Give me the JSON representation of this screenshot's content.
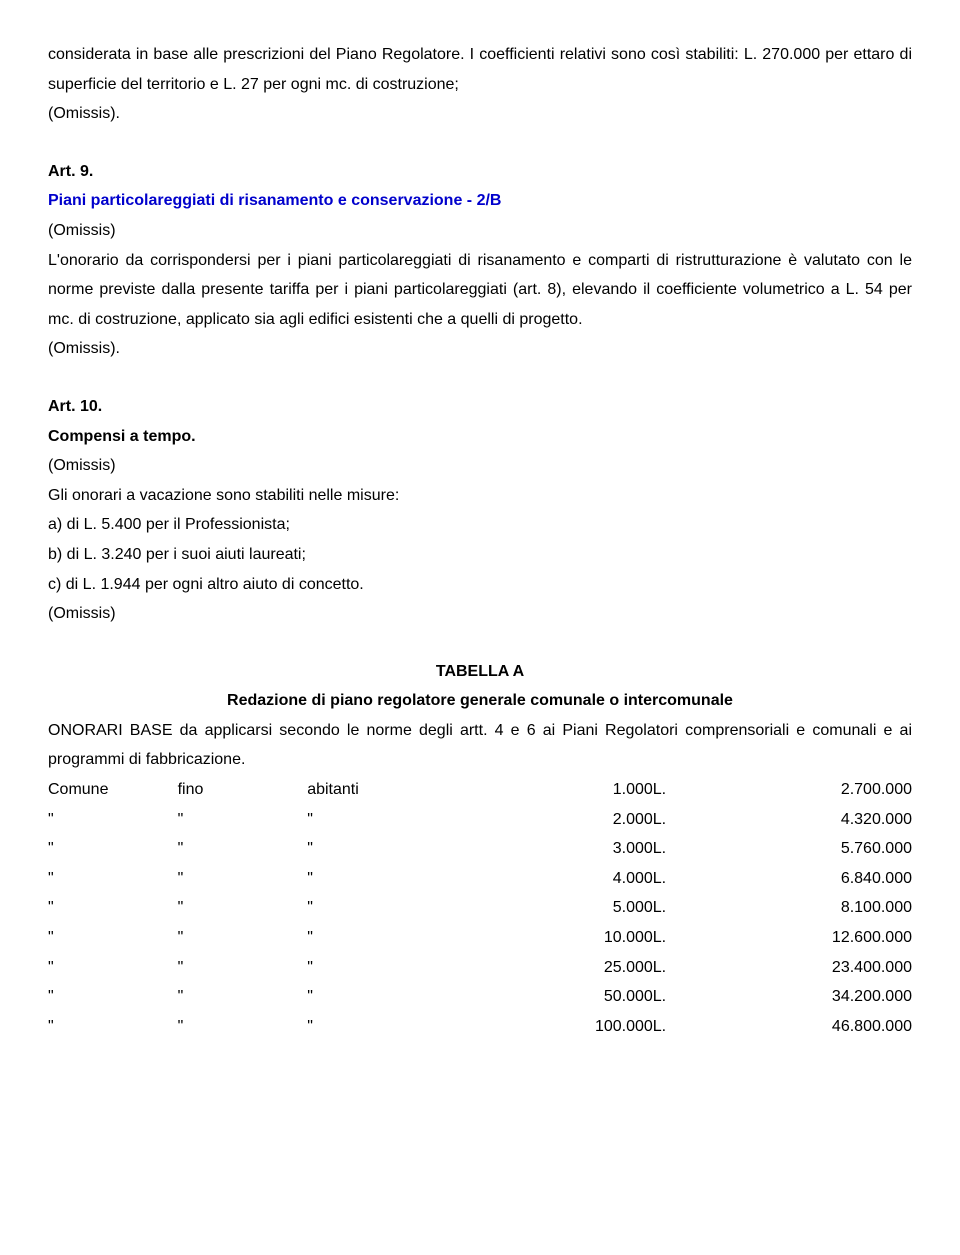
{
  "intro": {
    "p1": "considerata in base alle prescrizioni del Piano Regolatore. I coefficienti relativi sono così stabiliti: L. 270.000 per ettaro di superficie del territorio e L. 27 per ogni mc. di costruzione;",
    "omissis": "(Omissis)."
  },
  "art9": {
    "heading": "Art. 9.",
    "title": "Piani particolareggiati di risanamento e conservazione - 2/B",
    "omissis1": "(Omissis)",
    "body": "L'onorario da corrispondersi per i piani particolareggiati di risanamento e comparti di ristrutturazione è valutato con le norme previste dalla presente tariffa per i piani particolareggiati (art. 8), elevando il coefficiente volumetrico a L. 54 per mc. di costruzione, applicato sia agli edifici esistenti che a quelli di progetto.",
    "omissis2": "(Omissis)."
  },
  "art10": {
    "heading": "Art. 10.",
    "title": "Compensi a tempo.",
    "omissis1": "(Omissis)",
    "line1": "Gli onorari a vacazione sono stabiliti nelle misure:",
    "a": "a) di L. 5.400 per il Professionista;",
    "b": "b) di L. 3.240 per i suoi aiuti laureati;",
    "c": "c) di L. 1.944 per ogni altro aiuto di concetto.",
    "omissis2": "(Omissis)"
  },
  "tabella": {
    "title": "TABELLA A",
    "subtitle": "Redazione di piano regolatore generale comunale o intercomunale",
    "desc": "ONORARI BASE da applicarsi secondo le norme degli artt. 4 e 6 ai Piani Regolatori comprensoriali e comunali e ai programmi di fabbricazione.",
    "header": {
      "c1": "Comune",
      "c2": "fino",
      "c3": "abitanti"
    },
    "quote": "\"",
    "currency": "L.",
    "rows": [
      {
        "pop": "1.000",
        "val": "2.700.000"
      },
      {
        "pop": "2.000",
        "val": "4.320.000"
      },
      {
        "pop": "3.000",
        "val": "5.760.000"
      },
      {
        "pop": "4.000",
        "val": "6.840.000"
      },
      {
        "pop": "5.000",
        "val": "8.100.000"
      },
      {
        "pop": "10.000",
        "val": "12.600.000"
      },
      {
        "pop": "25.000",
        "val": "23.400.000"
      },
      {
        "pop": "50.000",
        "val": "34.200.000"
      },
      {
        "pop": "100.000",
        "val": "46.800.000"
      }
    ]
  }
}
